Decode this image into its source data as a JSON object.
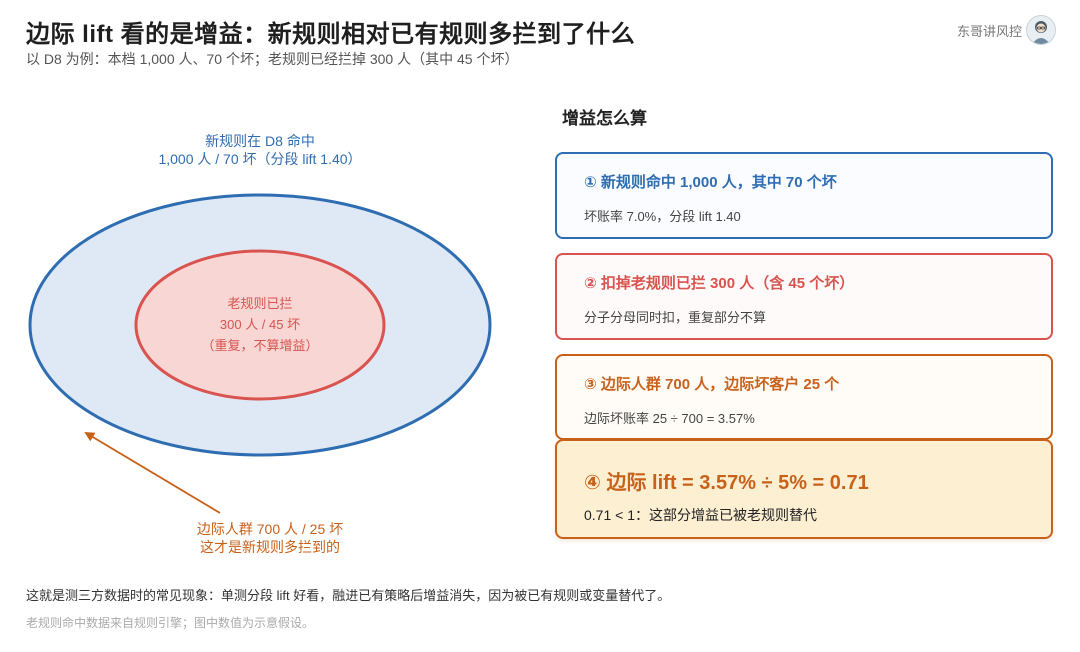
{
  "header": {
    "title": "边际 lift 看的是增益：新规则相对已有规则多拦到了什么",
    "subtitle": "以 D8 为例：本档 1,000 人、70 个坏；老规则已经拦掉 300 人（其中 45 个坏）",
    "author": "东哥讲风控"
  },
  "diagram": {
    "outer_label_line1": "新规则在 D8 命中",
    "outer_label_line2": "1,000 人 / 70 坏（分段 lift 1.40）",
    "inner_label_line1": "老规则已拦",
    "inner_label_line2": "300 人 / 45 坏",
    "inner_label_line3": "（重复，不算增益）",
    "margin_label_line1": "边际人群 700 人 / 25 坏",
    "margin_label_line2": "这才是新规则多拦到的"
  },
  "steps": {
    "title": "增益怎么算",
    "cards": [
      {
        "heading": "① 新规则命中 1,000 人，其中 70 个坏",
        "body": "坏账率 7.0%，分段 lift 1.40"
      },
      {
        "heading": "② 扣掉老规则已拦 300 人（含 45 个坏）",
        "body": "分子分母同时扣，重复部分不算"
      },
      {
        "heading": "③ 边际人群 700 人，边际坏客户 25 个",
        "body": "边际坏账率 25 ÷ 700 = 3.57%"
      },
      {
        "heading": "④ 边际 lift = 3.57% ÷ 5% = 0.71",
        "body": "0.71 < 1：这部分增益已被老规则替代"
      }
    ]
  },
  "footer": {
    "note": "这就是测三方数据时的常见现象：单测分段 lift 好看，融进已有策略后增益消失，因为被已有规则或变量替代了。",
    "source": "老规则命中数据来自规则引擎；图中数值为示意假设。"
  },
  "colors": {
    "blue": "#2f6db2",
    "red": "#d9534f",
    "orange": "#c8611a",
    "outer_fill": "#dfe9f5",
    "inner_fill": "#f7d6d4",
    "highlight_fill": "#fdefd2"
  },
  "icons": {
    "avatar": "avatar-icon",
    "arrow": "arrow-icon"
  }
}
